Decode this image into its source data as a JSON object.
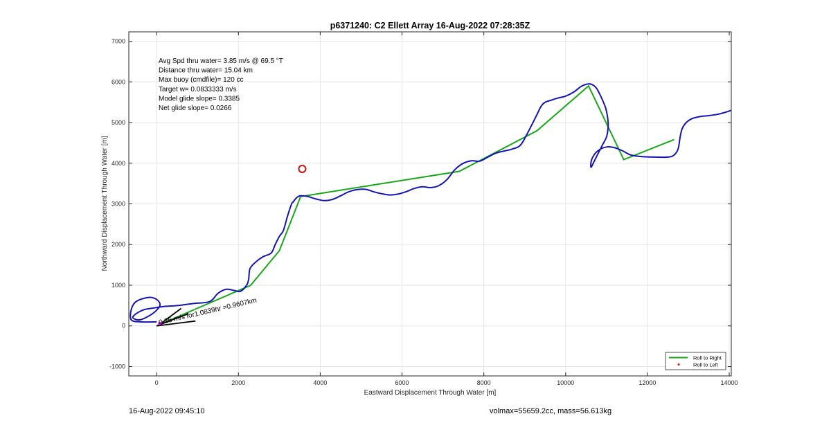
{
  "chart_data": {
    "type": "line",
    "title": "p6371240: C2 Ellett Array 16-Aug-2022 07:28:35Z",
    "xlabel": "Eastward Displacement Through Water [m]",
    "ylabel": "Northward Displacement Through Water [m]",
    "xlim": [
      -680,
      14050
    ],
    "ylim": [
      -1230,
      7230
    ],
    "xticks": [
      0,
      2000,
      4000,
      6000,
      8000,
      10000,
      12000,
      14000
    ],
    "yticks": [
      -1000,
      0,
      1000,
      2000,
      3000,
      4000,
      5000,
      6000,
      7000
    ],
    "grid": true,
    "legend_position": "bottom-right",
    "legend": [
      {
        "label": "Roll to Right",
        "color": "#1aa61a",
        "marker": "line"
      },
      {
        "label": "Roll to Left",
        "color": "#cc1111",
        "marker": "dot"
      }
    ],
    "stats_lines": [
      "Avg Spd thru water=  3.85 m/s @  69.5 °T",
      "Distance thru water= 15.04 km",
      "Max buoy (cmdfile)= 120 cc",
      "Target w= 0.0833333 m/s",
      "Model glide slope= 0.3385",
      "Net glide slope= 0.0266"
    ],
    "current_annotation": "0.26 m/s for1.0839hr =0.9607km",
    "series": [
      {
        "name": "Roll to Right",
        "color": "#1aa61a",
        "x": [
          0,
          2300,
          3000,
          3520,
          7400,
          9300,
          10560,
          11420,
          12650
        ],
        "y": [
          0,
          1000,
          1850,
          3180,
          3800,
          4800,
          5900,
          4090,
          4580
        ]
      },
      {
        "color": "#1414b4",
        "x": [
          0,
          -400,
          -620,
          -620,
          -500,
          -200,
          0,
          80,
          -100,
          -400,
          -580,
          -500,
          -300,
          0,
          200,
          500,
          900,
          1300,
          1500,
          1700,
          1900,
          2050,
          2200,
          2250,
          2280,
          2400,
          2600,
          2800,
          2900,
          3000,
          3100,
          3200,
          3300,
          3340,
          3420,
          3520,
          3700,
          3900,
          4100,
          4300,
          4500,
          4700,
          4900,
          5100,
          5300,
          5500,
          5700,
          5900,
          6100,
          6300,
          6500,
          6700,
          6900,
          7100,
          7300,
          7500,
          7700,
          7900,
          8100,
          8300,
          8500,
          8700,
          8900,
          9100,
          9300,
          9400,
          9500,
          9650,
          9800,
          10000,
          10200,
          10400,
          10600,
          10750,
          10880,
          10980,
          11030,
          11040,
          11000,
          10900,
          10800,
          10700,
          10620,
          10640,
          10780,
          11000,
          11200,
          11400,
          11600,
          11900,
          12200,
          12500,
          12650,
          12750,
          12800,
          12850,
          12950,
          13100,
          13300,
          13500,
          13700,
          13900,
          14050
        ],
        "y": [
          100,
          100,
          150,
          400,
          600,
          700,
          650,
          500,
          300,
          150,
          200,
          300,
          400,
          450,
          480,
          500,
          550,
          600,
          800,
          900,
          870,
          850,
          1000,
          1150,
          1400,
          1550,
          1700,
          1790,
          2000,
          2200,
          2350,
          2700,
          3000,
          3050,
          3150,
          3200,
          3180,
          3120,
          3080,
          3110,
          3200,
          3300,
          3350,
          3360,
          3300,
          3250,
          3220,
          3240,
          3300,
          3380,
          3420,
          3400,
          3450,
          3600,
          3850,
          4000,
          4060,
          4050,
          4150,
          4250,
          4300,
          4350,
          4450,
          4800,
          5200,
          5400,
          5500,
          5550,
          5600,
          5650,
          5750,
          5900,
          5950,
          5850,
          5600,
          5350,
          5100,
          4900,
          4650,
          4450,
          4250,
          4050,
          3900,
          4100,
          4300,
          4400,
          4380,
          4300,
          4200,
          4160,
          4150,
          4150,
          4200,
          4350,
          4650,
          4850,
          5000,
          5100,
          5150,
          5170,
          5200,
          5250,
          5300
        ]
      }
    ],
    "target": {
      "x": 3560,
      "y": 3860,
      "color": "#cc1111"
    },
    "current_vectors": [
      {
        "x0": 0,
        "y0": 0,
        "x1": 950,
        "y1": 120
      },
      {
        "x0": 0,
        "y0": 0,
        "x1": 780,
        "y1": 300
      },
      {
        "x0": 80,
        "y0": 40,
        "x1": 600,
        "y1": 430
      }
    ],
    "current_marker": {
      "x": 80,
      "y": 60,
      "color": "#ff00ff"
    }
  },
  "footer": {
    "left": "16-Aug-2022 09:45:10",
    "right": "volmax=55659.2cc, mass=56.613kg"
  }
}
